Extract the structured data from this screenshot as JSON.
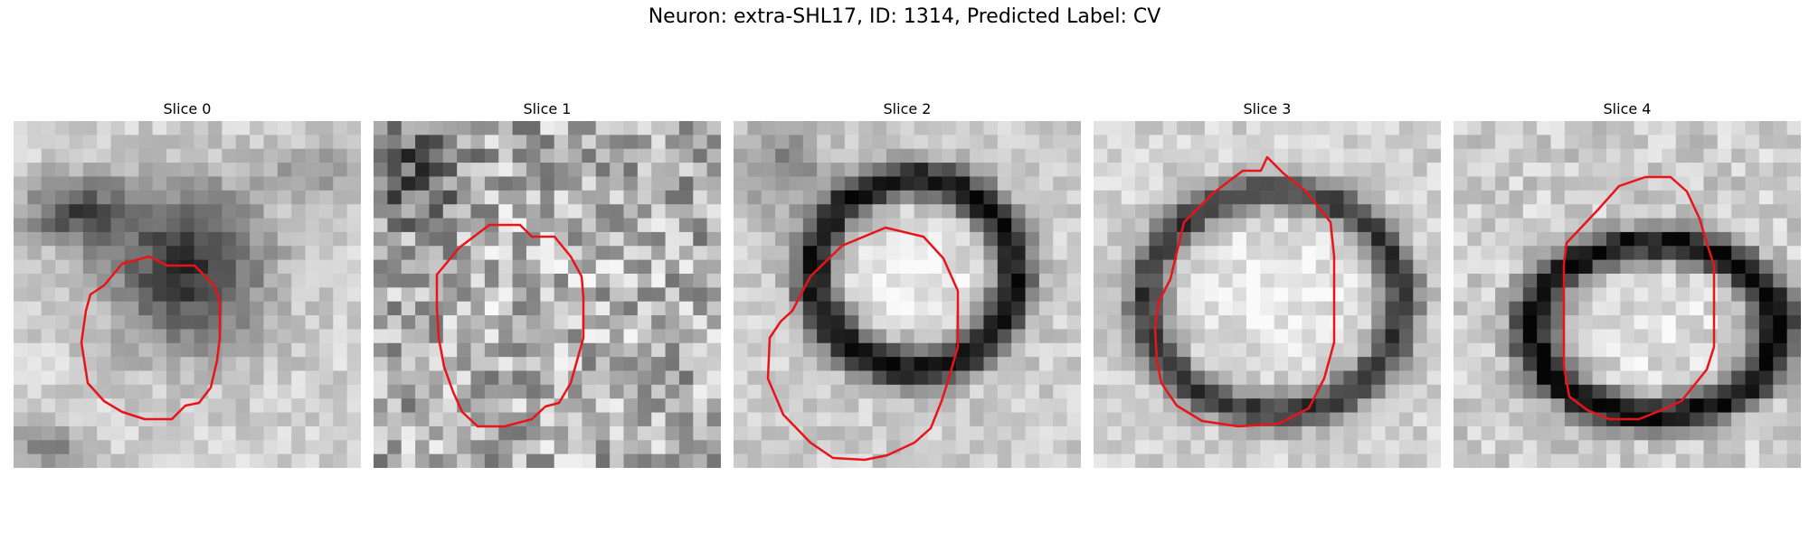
{
  "figure": {
    "title": "Neuron: extra-SHL17, ID: 1314, Predicted Label: CV"
  },
  "panels": [
    {
      "title": "Slice 0"
    },
    {
      "title": "Slice 1"
    },
    {
      "title": "Slice 2"
    },
    {
      "title": "Slice 3"
    },
    {
      "title": "Slice 4"
    }
  ],
  "colors": {
    "contour": "#e8141a",
    "background": "#ffffff"
  }
}
